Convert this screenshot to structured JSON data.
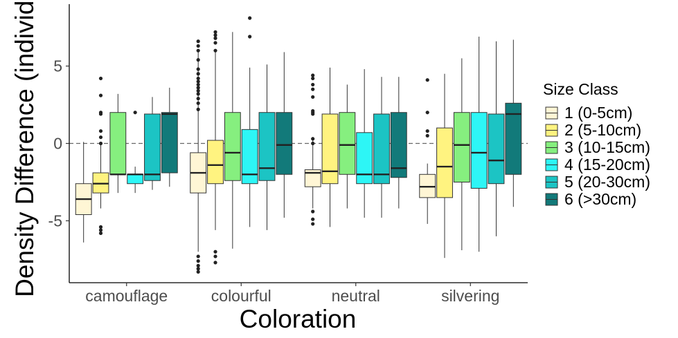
{
  "chart_data": {
    "type": "boxplot",
    "title": "",
    "xlabel": "Coloration",
    "ylabel": "Density Difference (individu",
    "ylim": [
      -9,
      9
    ],
    "yticks": [
      -5,
      0,
      5
    ],
    "reference_line": {
      "y": 0,
      "style": "dashed"
    },
    "grid": false,
    "legend": {
      "title": "Size Class",
      "placement": "right",
      "entries": [
        {
          "label": "1 (0-5cm)",
          "color": "#FFF6D5"
        },
        {
          "label": "2 (5-10cm)",
          "color": "#FFF380"
        },
        {
          "label": "3 (10-15cm)",
          "color": "#86EF7F"
        },
        {
          "label": "4 (15-20cm)",
          "color": "#2DF6F6"
        },
        {
          "label": "5 (20-30cm)",
          "color": "#1CC4C4"
        },
        {
          "label": "6 (>30cm)",
          "color": "#127A7A"
        }
      ]
    },
    "categories": [
      "camouflage",
      "colourful",
      "neutral",
      "silvering"
    ],
    "series": [
      {
        "name": "1 (0-5cm)",
        "boxes": [
          {
            "min": -6.4,
            "q1": -4.6,
            "median": -3.6,
            "q3": -2.6,
            "max": 0.1,
            "outliers": []
          },
          {
            "min": -7.0,
            "q1": -3.2,
            "median": -1.9,
            "q3": -0.6,
            "max": 6.0,
            "outliers": [
              6.6,
              6.3,
              6.0,
              5.4,
              4.8,
              4.5,
              4.2,
              4.0,
              3.8,
              3.6,
              3.4,
              3.2,
              2.9,
              2.6,
              2.2,
              -7.3,
              -7.6,
              -7.9,
              -8.1,
              -8.3
            ]
          },
          {
            "min": -4.2,
            "q1": -2.8,
            "median": -1.9,
            "q3": -1.7,
            "max": 0.3,
            "outliers": [
              4.4,
              4.2,
              3.8,
              3.5,
              3.0,
              2.1,
              2.0,
              1.9,
              0.3,
              0.0,
              -4.4,
              -4.9,
              -5.2
            ]
          },
          {
            "min": -5.2,
            "q1": -3.5,
            "median": -2.8,
            "q3": -2.0,
            "max": -1.3,
            "outliers": [
              4.1,
              2.0,
              0.8,
              0.5
            ]
          }
        ]
      },
      {
        "name": "2 (5-10cm)",
        "boxes": [
          {
            "min": -4.2,
            "q1": -3.2,
            "median": -2.6,
            "q3": -1.9,
            "max": 0.0,
            "outliers": [
              4.2,
              3.1,
              2.0,
              1.9,
              0.8,
              0.4,
              0.0,
              -5.4,
              -5.6,
              -5.8
            ]
          },
          {
            "min": -5.6,
            "q1": -2.6,
            "median": -1.4,
            "q3": 0.2,
            "max": 5.9,
            "outliers": [
              7.2,
              7.0,
              6.8,
              6.5,
              6.0,
              -7.0,
              -7.3,
              -7.7
            ]
          },
          {
            "min": -5.4,
            "q1": -2.6,
            "median": -1.8,
            "q3": 1.9,
            "max": 4.9,
            "outliers": []
          },
          {
            "min": -7.4,
            "q1": -3.5,
            "median": -1.5,
            "q3": 1.0,
            "max": 4.5,
            "outliers": []
          }
        ]
      },
      {
        "name": "3 (10-15cm)",
        "boxes": [
          {
            "min": -3.2,
            "q1": -2.0,
            "median": -2.0,
            "q3": 2.0,
            "max": 3.2,
            "outliers": []
          },
          {
            "min": -6.8,
            "q1": -2.4,
            "median": -0.6,
            "q3": 2.0,
            "max": 7.2,
            "outliers": []
          },
          {
            "min": -4.2,
            "q1": -2.0,
            "median": -0.1,
            "q3": 2.0,
            "max": 3.8,
            "outliers": []
          },
          {
            "min": -6.9,
            "q1": -2.5,
            "median": -0.1,
            "q3": 2.0,
            "max": 5.5,
            "outliers": []
          }
        ]
      },
      {
        "name": "4 (15-20cm)",
        "boxes": [
          {
            "min": -3.2,
            "q1": -2.6,
            "median": -2.0,
            "q3": -2.0,
            "max": -1.5,
            "outliers": [
              2.0
            ]
          },
          {
            "min": -5.4,
            "q1": -2.6,
            "median": -2.0,
            "q3": 0.9,
            "max": 4.9,
            "outliers": [
              8.1,
              6.9
            ]
          },
          {
            "min": -4.8,
            "q1": -2.6,
            "median": -2.0,
            "q3": 0.7,
            "max": 4.8,
            "outliers": []
          },
          {
            "min": -7.0,
            "q1": -2.9,
            "median": -0.6,
            "q3": 2.0,
            "max": 6.9,
            "outliers": []
          }
        ]
      },
      {
        "name": "5 (20-30cm)",
        "boxes": [
          {
            "min": -3.0,
            "q1": -2.4,
            "median": -2.0,
            "q3": 1.9,
            "max": 3.0,
            "outliers": []
          },
          {
            "min": -5.6,
            "q1": -2.4,
            "median": -1.6,
            "q3": 2.0,
            "max": 5.1,
            "outliers": []
          },
          {
            "min": -4.8,
            "q1": -2.6,
            "median": -2.0,
            "q3": 1.9,
            "max": 4.3,
            "outliers": []
          },
          {
            "min": -6.0,
            "q1": -2.6,
            "median": -1.1,
            "q3": 1.9,
            "max": 6.6,
            "outliers": []
          }
        ]
      },
      {
        "name": "6 (>30cm)",
        "boxes": [
          {
            "min": -2.8,
            "q1": -1.9,
            "median": 1.9,
            "q3": 2.0,
            "max": 3.6,
            "outliers": []
          },
          {
            "min": -4.8,
            "q1": -2.0,
            "median": -0.1,
            "q3": 2.0,
            "max": 5.9,
            "outliers": []
          },
          {
            "min": -4.2,
            "q1": -2.2,
            "median": -1.6,
            "q3": 2.0,
            "max": 4.3,
            "outliers": []
          },
          {
            "min": -4.1,
            "q1": -2.0,
            "median": 1.9,
            "q3": 2.6,
            "max": 6.7,
            "outliers": []
          }
        ]
      }
    ]
  }
}
